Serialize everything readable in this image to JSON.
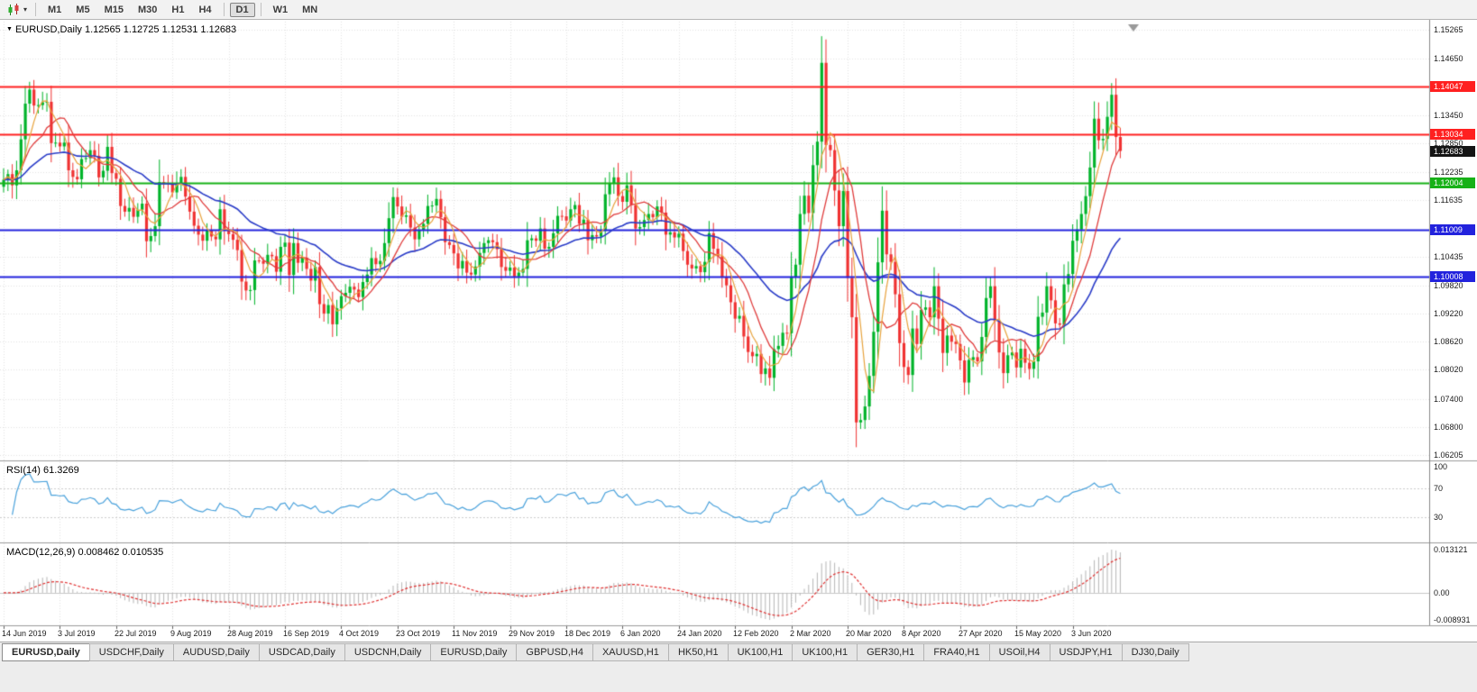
{
  "toolbar": {
    "chart_type_icon": "candlestick-chart-icon",
    "dropdown_icon": "▾",
    "timeframes": [
      {
        "label": "M1"
      },
      {
        "label": "M5"
      },
      {
        "label": "M15"
      },
      {
        "label": "M30"
      },
      {
        "label": "H1"
      },
      {
        "label": "H4"
      },
      {
        "label": "D1",
        "active": true
      },
      {
        "label": "W1"
      },
      {
        "label": "MN"
      }
    ]
  },
  "chart_data": {
    "type": "candlestick",
    "symbol": "EURUSD",
    "timeframe": "Daily",
    "header_text": "EURUSD,Daily 1.12565 1.12725 1.12531 1.12683",
    "ohlc": {
      "open": "1.12565",
      "high": "1.12725",
      "low": "1.12531",
      "close": "1.12683"
    },
    "price_axis": {
      "top": 1.15265,
      "bottom": 1.06205,
      "grid_labels": [
        "1.15265",
        "1.14650",
        "1.13450",
        "1.12850",
        "1.12235",
        "1.11635",
        "1.10435",
        "1.09820",
        "1.09220",
        "1.08620",
        "1.08020",
        "1.07400",
        "1.06800",
        "1.06205"
      ],
      "tagged_levels": [
        {
          "label": "1.14047",
          "value": 1.14047,
          "color": "#ff2020",
          "line": true
        },
        {
          "label": "1.13034",
          "value": 1.13034,
          "color": "#ff2020",
          "line": true
        },
        {
          "label": "1.12683",
          "value": 1.12683,
          "color": "#141414",
          "line": false,
          "current": true
        },
        {
          "label": "1.12004",
          "value": 1.12004,
          "color": "#17b117",
          "line": true
        },
        {
          "label": "1.11009",
          "value": 1.11009,
          "color": "#2222dd",
          "line": true
        },
        {
          "label": "1.10008",
          "value": 1.10008,
          "color": "#2222dd",
          "line": true
        }
      ]
    },
    "x_tick_labels": [
      "14 Jun 2019",
      "3 Jul 2019",
      "22 Jul 2019",
      "9 Aug 2019",
      "28 Aug 2019",
      "16 Sep 2019",
      "4 Oct 2019",
      "23 Oct 2019",
      "11 Nov 2019",
      "29 Nov 2019",
      "18 Dec 2019",
      "6 Jan 2020",
      "24 Jan 2020",
      "12 Feb 2020",
      "2 Mar 2020",
      "20 Mar 2020",
      "8 Apr 2020",
      "27 Apr 2020",
      "15 May 2020",
      "3 Jun 2020"
    ],
    "candles_per_tick": 13,
    "closes": [
      1.1207,
      1.1219,
      1.1195,
      1.1227,
      1.1293,
      1.1369,
      1.1399,
      1.1365,
      1.1366,
      1.1372,
      1.1373,
      1.1285,
      1.1286,
      1.1278,
      1.1286,
      1.1227,
      1.1213,
      1.1208,
      1.1251,
      1.1253,
      1.127,
      1.1258,
      1.1212,
      1.1226,
      1.1277,
      1.1221,
      1.1209,
      1.1151,
      1.1139,
      1.1147,
      1.1128,
      1.1143,
      1.1156,
      1.1076,
      1.1087,
      1.1108,
      1.1202,
      1.12,
      1.1198,
      1.118,
      1.1199,
      1.1213,
      1.1171,
      1.1139,
      1.1109,
      1.109,
      1.1077,
      1.11,
      1.1086,
      1.108,
      1.1144,
      1.1101,
      1.1091,
      1.1079,
      1.1057,
      1.099,
      1.0971,
      1.0972,
      1.1035,
      1.1034,
      1.1028,
      1.1047,
      1.1044,
      1.1011,
      1.1064,
      1.1073,
      1.1004,
      1.1072,
      1.103,
      1.1041,
      1.1017,
      1.0992,
      1.1021,
      1.0942,
      1.0922,
      1.094,
      1.0899,
      1.0933,
      1.0959,
      1.0966,
      1.0979,
      1.0973,
      1.0957,
      1.0989,
      1.1005,
      1.104,
      1.1027,
      1.1034,
      1.1072,
      1.1125,
      1.117,
      1.115,
      1.1128,
      1.1131,
      1.1105,
      1.108,
      1.1099,
      1.1113,
      1.1151,
      1.1152,
      1.1166,
      1.1127,
      1.1074,
      1.1068,
      1.105,
      1.1018,
      1.1034,
      1.1009,
      1.1005,
      1.1022,
      1.1051,
      1.1072,
      1.1078,
      1.1074,
      1.1059,
      1.1021,
      1.1013,
      1.102,
      1.1001,
      1.1009,
      1.1017,
      1.1078,
      1.1082,
      1.1077,
      1.1103,
      1.106,
      1.1064,
      1.1093,
      1.113,
      1.1129,
      1.112,
      1.1144,
      1.1153,
      1.1113,
      1.1122,
      1.1078,
      1.1089,
      1.1086,
      1.1098,
      1.1176,
      1.1199,
      1.1212,
      1.1172,
      1.116,
      1.1195,
      1.1153,
      1.1103,
      1.1106,
      1.1121,
      1.1134,
      1.1127,
      1.115,
      1.1137,
      1.109,
      1.1095,
      1.1084,
      1.1092,
      1.1055,
      1.1026,
      1.1018,
      1.1023,
      1.101,
      1.1032,
      1.1093,
      1.106,
      1.1044,
      1.0999,
      1.0982,
      1.0946,
      1.0911,
      1.0917,
      1.0873,
      1.084,
      1.0831,
      1.0836,
      1.0793,
      1.0805,
      1.0785,
      1.0846,
      1.0853,
      1.0881,
      1.088,
      1.0999,
      1.1026,
      1.1134,
      1.1173,
      1.1136,
      1.1238,
      1.1288,
      1.1456,
      1.1281,
      1.127,
      1.1184,
      1.1108,
      1.1183,
      1.0998,
      1.0914,
      1.069,
      1.0695,
      1.0724,
      1.0789,
      1.0883,
      1.1031,
      1.1141,
      1.1048,
      1.1032,
      1.0963,
      1.0859,
      1.0808,
      1.0791,
      1.089,
      1.0857,
      1.093,
      1.0935,
      1.0914,
      1.098,
      1.0911,
      1.0838,
      1.0875,
      1.0862,
      1.0857,
      1.0822,
      1.0775,
      1.0823,
      1.0829,
      1.082,
      1.0872,
      1.0955,
      1.098,
      1.0906,
      1.0839,
      1.0795,
      1.0833,
      1.0839,
      1.0807,
      1.0847,
      1.0817,
      1.0804,
      1.082,
      1.0915,
      1.0924,
      1.098,
      1.095,
      1.0901,
      1.0898,
      1.0984,
      1.1006,
      1.1077,
      1.1101,
      1.1134,
      1.1172,
      1.1233,
      1.1337,
      1.1291,
      1.1294,
      1.1341,
      1.1388,
      1.1298,
      1.12683
    ],
    "candle_colors": {
      "up": "#00b42a",
      "down": "#f03232"
    },
    "moving_averages": [
      {
        "name": "fast-ma",
        "type": "sma",
        "period": 5,
        "color": "#e8a33d"
      },
      {
        "name": "mid-ma",
        "type": "sma",
        "period": 10,
        "color": "#e03c3c"
      },
      {
        "name": "slow-ma",
        "type": "ema",
        "period": 34,
        "color": "#2a3cc8"
      }
    ],
    "rsi": {
      "header": "RSI(14) 61.3269",
      "period": 14,
      "value": 61.3269,
      "levels": [
        "100",
        "70",
        "30"
      ],
      "color": "#4aa2dc"
    },
    "macd": {
      "header": "MACD(12,26,9) 0.008462 0.010535",
      "fast": 12,
      "slow": 26,
      "signal": 9,
      "values": [
        0.008462,
        0.010535
      ],
      "axis_labels": [
        "0.013121",
        "0.00",
        "-0.008931"
      ],
      "histogram_color": "#b6b6b6",
      "signal_color": "#e03030"
    }
  },
  "tabs": [
    {
      "label": "EURUSD,Daily",
      "active": true
    },
    {
      "label": "USDCHF,Daily"
    },
    {
      "label": "AUDUSD,Daily"
    },
    {
      "label": "USDCAD,Daily"
    },
    {
      "label": "USDCNH,Daily"
    },
    {
      "label": "EURUSD,Daily"
    },
    {
      "label": "GBPUSD,H4"
    },
    {
      "label": "XAUUSD,H1"
    },
    {
      "label": "HK50,H1"
    },
    {
      "label": "UK100,H1"
    },
    {
      "label": "UK100,H1"
    },
    {
      "label": "GER30,H1"
    },
    {
      "label": "FRA40,H1"
    },
    {
      "label": "USOil,H4"
    },
    {
      "label": "USDJPY,H1"
    },
    {
      "label": "DJ30,Daily"
    }
  ]
}
